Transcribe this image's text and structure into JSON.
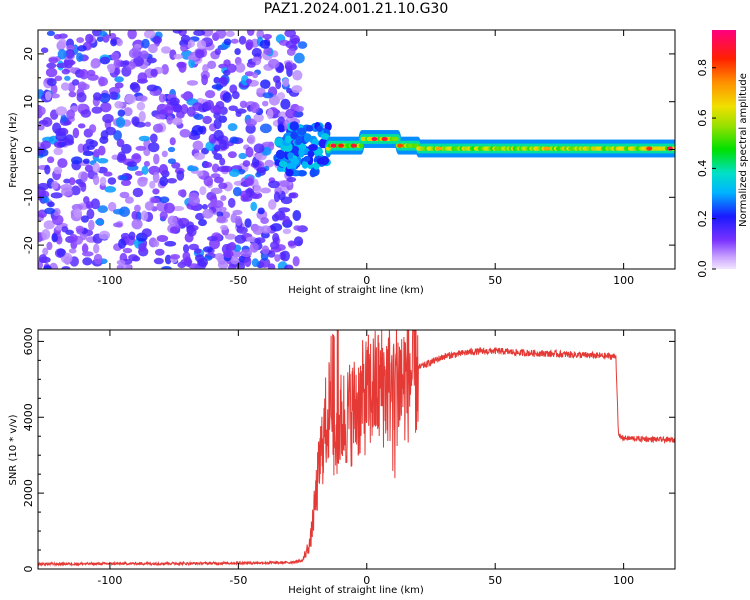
{
  "title": "PAZ1.2024.001.21.10.G30",
  "colors": {
    "snr_line": "#e53935",
    "axis": "#000000"
  },
  "chart_data": [
    {
      "type": "heatmap",
      "title": "PAZ1.2024.001.21.10.G30",
      "xlabel": "Height of straight line (km)",
      "ylabel": "Frequency (Hz)",
      "xlim": [
        -128,
        120
      ],
      "ylim": [
        -25,
        25
      ],
      "x_ticks": [
        -100,
        -50,
        0,
        50,
        100
      ],
      "y_ticks": [
        -20,
        -10,
        0,
        10,
        20
      ],
      "grid": false,
      "regions": [
        {
          "x_range": [
            -128,
            -20
          ],
          "description": "scattered low-amplitude noise across all frequencies",
          "amplitude": [
            0.05,
            0.3
          ]
        },
        {
          "x_range": [
            -35,
            -15
          ],
          "description": "transition: energy concentrating near 0 Hz",
          "amplitude": [
            0.2,
            0.35
          ],
          "freq_range": [
            -5,
            5
          ]
        },
        {
          "x_range": [
            -15,
            120
          ],
          "description": "narrow band centered near 0 Hz",
          "amplitude": [
            0.3,
            0.95
          ],
          "freq_range": [
            -1.5,
            3
          ]
        }
      ],
      "colorbar": {
        "label": "Normalized spectral amplitude",
        "range": [
          0,
          0.95
        ],
        "ticks": [
          0.0,
          0.2,
          0.4,
          0.6,
          0.8
        ]
      }
    },
    {
      "type": "line",
      "xlabel": "Height of straight line (km)",
      "ylabel": "SNR (10 * v/v)",
      "xlim": [
        -128,
        120
      ],
      "ylim": [
        0,
        6300
      ],
      "x_ticks": [
        -100,
        -50,
        0,
        50,
        100
      ],
      "y_ticks": [
        0,
        2000,
        4000,
        6000
      ],
      "grid": false,
      "series": [
        {
          "x": [
            -128,
            -100,
            -60,
            -30,
            -25,
            -22,
            -20,
            -18,
            -15,
            -12,
            -10,
            -5,
            0,
            5,
            10,
            15,
            20,
            25,
            30,
            40,
            50,
            60,
            70,
            80,
            90,
            97,
            98,
            100,
            110,
            120
          ],
          "y": [
            130,
            140,
            150,
            170,
            220,
            700,
            1800,
            3000,
            4200,
            3500,
            3900,
            4200,
            4600,
            4800,
            4900,
            5000,
            5300,
            5450,
            5600,
            5720,
            5750,
            5700,
            5680,
            5650,
            5620,
            5600,
            3500,
            3450,
            3420,
            3400
          ]
        }
      ]
    }
  ]
}
